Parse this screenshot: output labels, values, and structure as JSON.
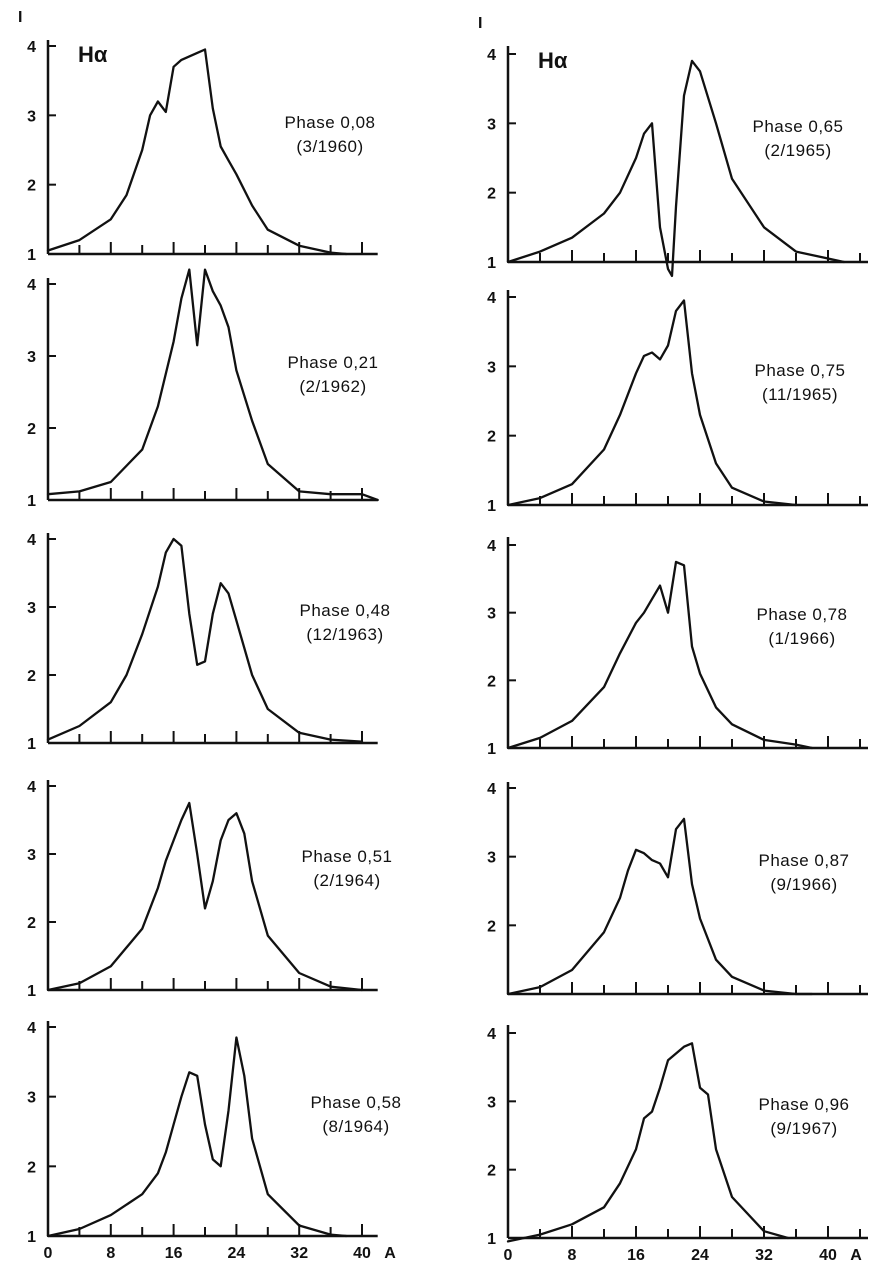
{
  "chart_data": [
    {
      "type": "line",
      "panel": "left-1",
      "line_label": "Hα",
      "y_axis_label": "I",
      "phase_label": "Phase 0,08",
      "date_label": "(3/1960)",
      "x": [
        0,
        4,
        8,
        10,
        12,
        13,
        14,
        15,
        16,
        17,
        18,
        19,
        20,
        21,
        22,
        23,
        24,
        26,
        28,
        32,
        36,
        38
      ],
      "y": [
        1.05,
        1.2,
        1.5,
        1.85,
        2.5,
        3.0,
        3.2,
        3.05,
        3.7,
        3.8,
        3.85,
        3.9,
        3.95,
        3.1,
        2.55,
        2.35,
        2.15,
        1.7,
        1.35,
        1.12,
        1.02,
        1.0
      ],
      "yticks": [
        "1",
        "2",
        "3",
        "4"
      ],
      "ylim": [
        1,
        4.3
      ],
      "xlim": [
        0,
        42
      ]
    },
    {
      "type": "line",
      "panel": "left-2",
      "phase_label": "Phase 0,21",
      "date_label": "(2/1962)",
      "x": [
        0,
        4,
        8,
        12,
        14,
        16,
        17,
        18,
        19,
        20,
        21,
        22,
        23,
        24,
        26,
        28,
        32,
        36,
        40,
        42
      ],
      "y": [
        1.08,
        1.12,
        1.25,
        1.7,
        2.3,
        3.2,
        3.8,
        4.2,
        3.15,
        4.2,
        3.9,
        3.7,
        3.4,
        2.8,
        2.1,
        1.5,
        1.12,
        1.08,
        1.08,
        1.0
      ],
      "yticks": [
        "1",
        "2",
        "3",
        "4"
      ],
      "ylim": [
        1,
        4.3
      ],
      "xlim": [
        0,
        42
      ]
    },
    {
      "type": "line",
      "panel": "left-3",
      "phase_label": "Phase 0,48",
      "date_label": "(12/1963)",
      "x": [
        0,
        4,
        8,
        10,
        12,
        14,
        15,
        16,
        17,
        18,
        19,
        20,
        21,
        22,
        23,
        24,
        26,
        28,
        32,
        36,
        40
      ],
      "y": [
        1.05,
        1.25,
        1.6,
        2.0,
        2.6,
        3.3,
        3.8,
        4.0,
        3.9,
        2.9,
        2.15,
        2.2,
        2.9,
        3.35,
        3.2,
        2.8,
        2.0,
        1.5,
        1.15,
        1.05,
        1.02
      ],
      "yticks": [
        "1",
        "2",
        "3",
        "4"
      ],
      "ylim": [
        1,
        4.3
      ],
      "xlim": [
        0,
        42
      ]
    },
    {
      "type": "line",
      "panel": "left-4",
      "phase_label": "Phase 0,51",
      "date_label": "(2/1964)",
      "x": [
        0,
        4,
        8,
        12,
        14,
        15,
        16,
        17,
        18,
        19,
        20,
        21,
        22,
        23,
        24,
        25,
        26,
        28,
        32,
        36,
        40
      ],
      "y": [
        1.0,
        1.1,
        1.35,
        1.9,
        2.5,
        2.9,
        3.2,
        3.5,
        3.75,
        3.0,
        2.2,
        2.6,
        3.2,
        3.5,
        3.6,
        3.3,
        2.6,
        1.8,
        1.25,
        1.05,
        1.0
      ],
      "yticks": [
        "1",
        "2",
        "3",
        "4"
      ],
      "ylim": [
        1,
        4.3
      ],
      "xlim": [
        0,
        42
      ]
    },
    {
      "type": "line",
      "panel": "left-5",
      "phase_label": "Phase 0,58",
      "date_label": "(8/1964)",
      "x": [
        0,
        4,
        8,
        12,
        14,
        15,
        16,
        17,
        18,
        19,
        20,
        21,
        22,
        23,
        24,
        25,
        26,
        28,
        32,
        36,
        38
      ],
      "y": [
        1.0,
        1.1,
        1.3,
        1.6,
        1.9,
        2.2,
        2.6,
        3.0,
        3.35,
        3.3,
        2.6,
        2.1,
        2.0,
        2.8,
        3.85,
        3.3,
        2.4,
        1.6,
        1.15,
        1.02,
        1.0
      ],
      "yticks": [
        "1",
        "2",
        "3",
        "4"
      ],
      "ylim": [
        1,
        4.3
      ],
      "xlim": [
        0,
        42
      ],
      "xticks": [
        "0",
        "8",
        "16",
        "24",
        "32",
        "40"
      ],
      "x_unit": "A"
    },
    {
      "type": "line",
      "panel": "right-1",
      "line_label": "Hα",
      "y_axis_label": "I",
      "phase_label": "Phase 0,65",
      "date_label": "(2/1965)",
      "x": [
        0,
        4,
        8,
        12,
        14,
        16,
        17,
        18,
        19,
        20,
        20.5,
        21,
        22,
        23,
        24,
        26,
        28,
        32,
        36,
        40,
        42
      ],
      "y": [
        1.0,
        1.15,
        1.35,
        1.7,
        2.0,
        2.5,
        2.85,
        3.0,
        1.5,
        0.9,
        0.8,
        1.8,
        3.4,
        3.9,
        3.75,
        3.0,
        2.2,
        1.5,
        1.15,
        1.05,
        1.0
      ],
      "yticks": [
        "1",
        "2",
        "3",
        "4"
      ],
      "ylim": [
        0.7,
        4.3
      ],
      "xlim": [
        0,
        45
      ]
    },
    {
      "type": "line",
      "panel": "right-2",
      "phase_label": "Phase 0,75",
      "date_label": "(11/1965)",
      "x": [
        0,
        4,
        8,
        12,
        14,
        16,
        17,
        18,
        19,
        20,
        21,
        22,
        23,
        24,
        26,
        28,
        32,
        36
      ],
      "y": [
        1.0,
        1.1,
        1.3,
        1.8,
        2.3,
        2.9,
        3.15,
        3.2,
        3.1,
        3.3,
        3.8,
        3.95,
        2.9,
        2.3,
        1.6,
        1.25,
        1.05,
        1.0
      ],
      "yticks": [
        "1",
        "2",
        "3",
        "4"
      ],
      "ylim": [
        1,
        4.3
      ],
      "xlim": [
        0,
        45
      ]
    },
    {
      "type": "line",
      "panel": "right-3",
      "phase_label": "Phase 0,78",
      "date_label": "(1/1966)",
      "x": [
        0,
        4,
        8,
        12,
        14,
        16,
        17,
        18,
        19,
        20,
        21,
        22,
        23,
        24,
        26,
        28,
        32,
        36,
        38
      ],
      "y": [
        1.0,
        1.15,
        1.4,
        1.9,
        2.4,
        2.85,
        3.0,
        3.2,
        3.4,
        3.0,
        3.75,
        3.7,
        2.5,
        2.1,
        1.6,
        1.35,
        1.12,
        1.05,
        1.0
      ],
      "yticks": [
        "1",
        "2",
        "3",
        "4"
      ],
      "ylim": [
        1,
        4.3
      ],
      "xlim": [
        0,
        45
      ]
    },
    {
      "type": "line",
      "panel": "right-4",
      "phase_label": "Phase 0,87",
      "date_label": "(9/1966)",
      "x": [
        0,
        4,
        8,
        12,
        14,
        15,
        16,
        17,
        18,
        19,
        20,
        21,
        22,
        23,
        24,
        26,
        28,
        32,
        36,
        38
      ],
      "y": [
        1.0,
        1.1,
        1.35,
        1.9,
        2.4,
        2.8,
        3.1,
        3.05,
        2.95,
        2.9,
        2.7,
        3.4,
        3.55,
        2.6,
        2.1,
        1.5,
        1.25,
        1.05,
        1.0,
        1.0
      ],
      "yticks": [
        "2",
        "3",
        "4"
      ],
      "ylim": [
        1,
        4.3
      ],
      "xlim": [
        0,
        45
      ]
    },
    {
      "type": "line",
      "panel": "right-5",
      "phase_label": "Phase 0,96",
      "date_label": "(9/1967)",
      "x": [
        0,
        4,
        8,
        12,
        14,
        16,
        17,
        18,
        19,
        20,
        21,
        22,
        23,
        24,
        25,
        26,
        28,
        32,
        35
      ],
      "y": [
        0.95,
        1.05,
        1.2,
        1.45,
        1.8,
        2.3,
        2.75,
        2.85,
        3.2,
        3.6,
        3.7,
        3.8,
        3.85,
        3.2,
        3.1,
        2.3,
        1.6,
        1.1,
        1.0
      ],
      "yticks": [
        "1",
        "2",
        "3",
        "4"
      ],
      "ylim": [
        1,
        4.3
      ],
      "xlim": [
        0,
        45
      ],
      "xticks": [
        "0",
        "8",
        "16",
        "24",
        "32",
        "40"
      ],
      "x_unit": "A"
    }
  ]
}
